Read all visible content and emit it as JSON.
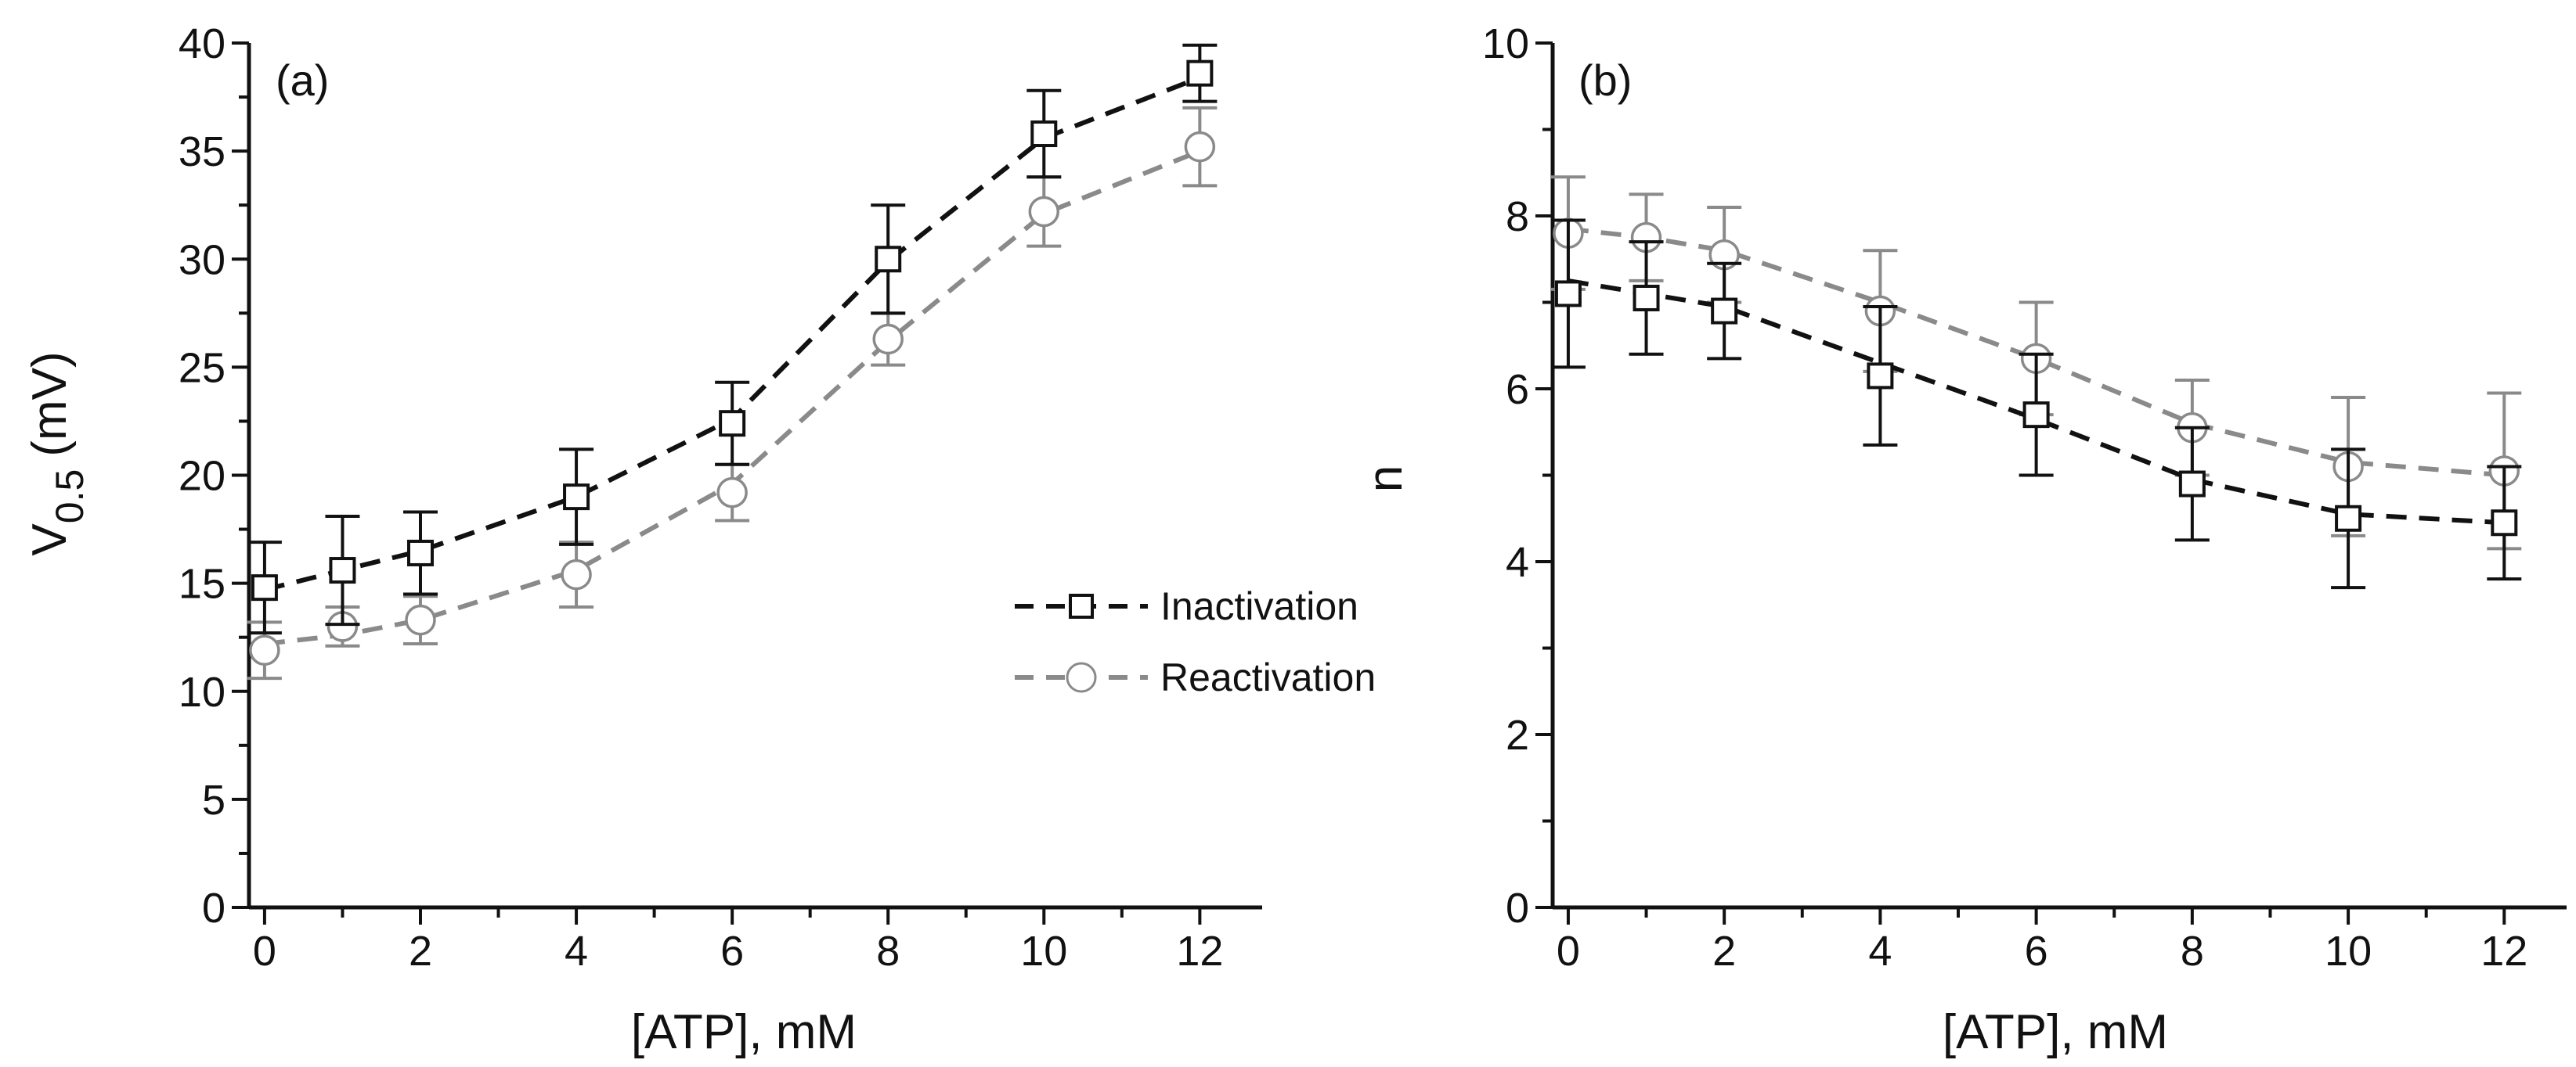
{
  "colors": {
    "inactivation": "#111111",
    "reactivation": "#8a8a8a",
    "axis": "#111111"
  },
  "chart_data": [
    {
      "type": "line",
      "panel_label": "(a)",
      "xlabel": "[ATP], mM",
      "ylabel_main": "V",
      "ylabel_sub": "0.5",
      "ylabel_unit": "(mV)",
      "xlim": [
        -0.2,
        12.8
      ],
      "ylim": [
        0,
        40
      ],
      "xticks": [
        0,
        2,
        4,
        6,
        8,
        10,
        12
      ],
      "yticks": [
        0,
        5,
        10,
        15,
        20,
        25,
        30,
        35,
        40
      ],
      "legend": {
        "position": "middle-right",
        "entries": [
          "Inactivation",
          "Reactivation"
        ]
      },
      "x": [
        0,
        1,
        2,
        4,
        6,
        8,
        10,
        12
      ],
      "series": [
        {
          "name": "Inactivation",
          "marker": "square",
          "values": [
            14.8,
            15.6,
            16.4,
            19.0,
            22.4,
            30.0,
            35.8,
            38.6
          ],
          "errors": [
            2.1,
            2.5,
            1.9,
            2.2,
            1.9,
            2.5,
            2.0,
            1.3
          ],
          "fit": [
            14.7,
            15.6,
            16.5,
            19.0,
            22.6,
            29.9,
            35.6,
            38.4
          ]
        },
        {
          "name": "Reactivation",
          "marker": "circle",
          "values": [
            11.9,
            13.0,
            13.3,
            15.4,
            19.2,
            26.3,
            32.2,
            35.2
          ],
          "errors": [
            1.3,
            0.9,
            1.1,
            1.5,
            1.3,
            1.2,
            1.6,
            1.8
          ],
          "fit": [
            12.2,
            12.6,
            13.3,
            15.6,
            19.6,
            26.2,
            32.1,
            35.0
          ]
        }
      ]
    },
    {
      "type": "line",
      "panel_label": "(b)",
      "xlabel": "[ATP], mM",
      "ylabel_main": "n",
      "xlim": [
        -0.2,
        12.8
      ],
      "ylim": [
        0,
        10
      ],
      "xticks": [
        0,
        2,
        4,
        6,
        8,
        10,
        12
      ],
      "yticks": [
        0,
        2,
        4,
        6,
        8,
        10
      ],
      "x": [
        0,
        1,
        2,
        4,
        6,
        8,
        10,
        12
      ],
      "series": [
        {
          "name": "Inactivation",
          "marker": "square",
          "values": [
            7.1,
            7.05,
            6.9,
            6.15,
            5.7,
            4.9,
            4.5,
            4.45
          ],
          "errors": [
            0.85,
            0.65,
            0.55,
            0.8,
            0.7,
            0.65,
            0.8,
            0.65
          ],
          "fit": [
            7.25,
            7.1,
            6.95,
            6.3,
            5.65,
            4.95,
            4.55,
            4.45
          ]
        },
        {
          "name": "Reactivation",
          "marker": "circle",
          "values": [
            7.8,
            7.75,
            7.55,
            6.9,
            6.35,
            5.55,
            5.1,
            5.05
          ],
          "errors": [
            0.65,
            0.5,
            0.55,
            0.7,
            0.65,
            0.55,
            0.8,
            0.9
          ],
          "fit": [
            7.85,
            7.75,
            7.6,
            7.0,
            6.35,
            5.6,
            5.15,
            5.0
          ]
        }
      ]
    }
  ]
}
